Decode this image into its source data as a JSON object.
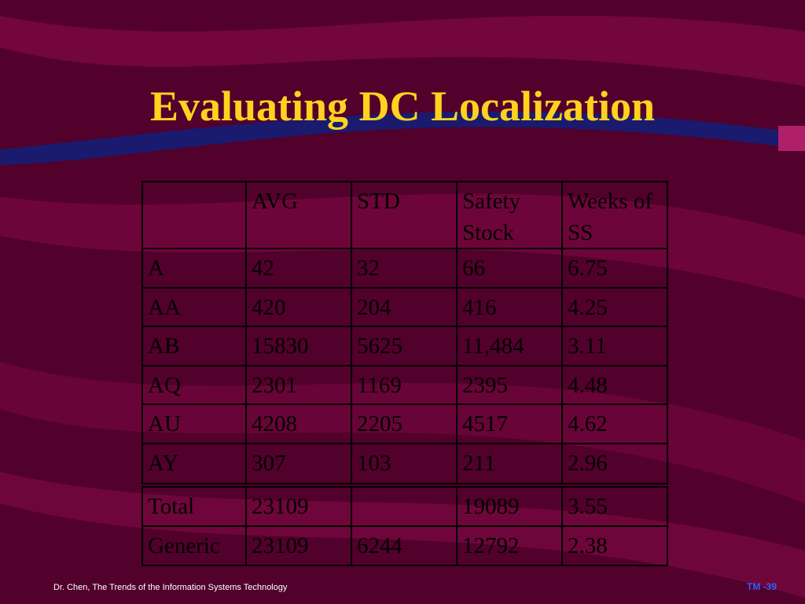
{
  "title": "Evaluating DC Localization",
  "table": {
    "header": [
      null,
      "AVG",
      "STD",
      "Safety Stock",
      "Weeks of SS"
    ],
    "rows": [
      [
        "A",
        "42",
        "32",
        "66",
        "6.75"
      ],
      [
        "AA",
        "420",
        "204",
        "416",
        "4.25"
      ],
      [
        "AB",
        "15830",
        "5625",
        "11,484",
        "3.11"
      ],
      [
        "AQ",
        "2301",
        "1169",
        "2395",
        "4.48"
      ],
      [
        "AU",
        "4208",
        "2205",
        "4517",
        "4.62"
      ],
      [
        "AY",
        "307",
        "103",
        "211",
        "2.96"
      ],
      [
        "Total",
        "23109",
        null,
        "19089",
        "3.55"
      ],
      [
        "Generic",
        "23109",
        "6244",
        "12792",
        "2.38"
      ]
    ]
  },
  "footer": {
    "left": "Dr. Chen, The Trends of the Information Systems Technology",
    "right": "TM -39"
  }
}
